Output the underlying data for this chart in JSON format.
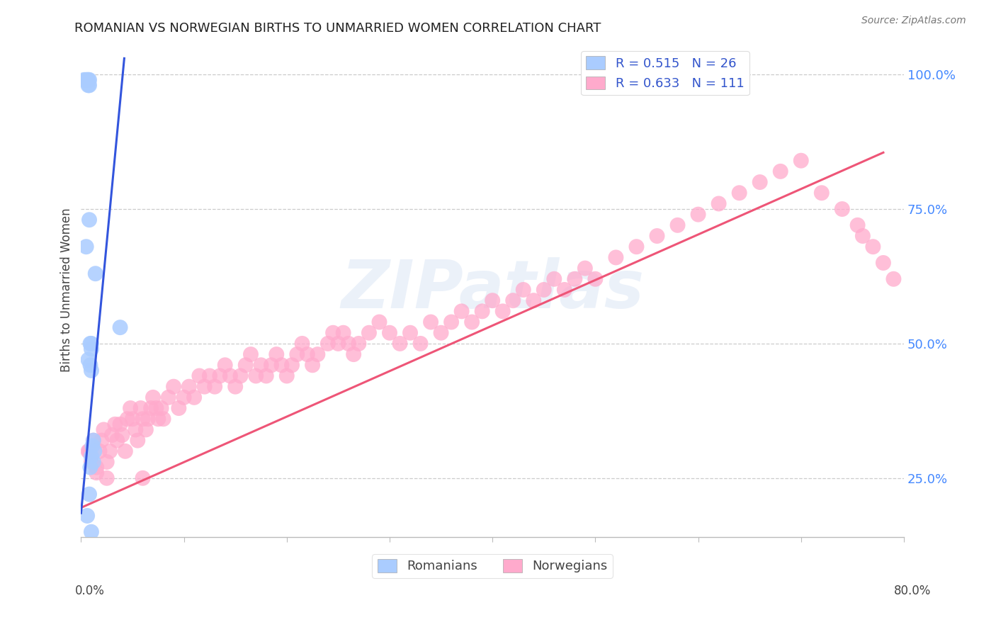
{
  "title": "ROMANIAN VS NORWEGIAN BIRTHS TO UNMARRIED WOMEN CORRELATION CHART",
  "source": "Source: ZipAtlas.com",
  "ylabel": "Births to Unmarried Women",
  "yticks": [
    0.25,
    0.5,
    0.75,
    1.0
  ],
  "ytick_labels": [
    "25.0%",
    "50.0%",
    "75.0%",
    "100.0%"
  ],
  "xmin": 0.0,
  "xmax": 0.8,
  "ymin": 0.14,
  "ymax": 1.06,
  "romanian_color": "#aaccff",
  "norwegian_color": "#ffaacc",
  "trend_romanian_color": "#3355dd",
  "trend_norwegian_color": "#ee5577",
  "legend_r_romanian": "R = 0.515",
  "legend_n_romanian": "N = 26",
  "legend_r_norwegian": "R = 0.633",
  "legend_n_norwegian": "N = 111",
  "watermark": "ZIPatlas",
  "rom_x": [
    0.003,
    0.005,
    0.006,
    0.007,
    0.007,
    0.008,
    0.008,
    0.008,
    0.009,
    0.009,
    0.01,
    0.01,
    0.01,
    0.011,
    0.012,
    0.012,
    0.013,
    0.014,
    0.005,
    0.007,
    0.009,
    0.01,
    0.008,
    0.006,
    0.038,
    0.01
  ],
  "rom_y": [
    0.99,
    0.99,
    0.99,
    0.99,
    0.98,
    0.99,
    0.98,
    0.73,
    0.46,
    0.5,
    0.45,
    0.49,
    0.29,
    0.31,
    0.32,
    0.28,
    0.3,
    0.63,
    0.68,
    0.47,
    0.27,
    0.5,
    0.22,
    0.18,
    0.53,
    0.15
  ],
  "nor_x": [
    0.008,
    0.01,
    0.012,
    0.015,
    0.018,
    0.02,
    0.022,
    0.025,
    0.028,
    0.03,
    0.033,
    0.035,
    0.038,
    0.04,
    0.043,
    0.045,
    0.048,
    0.05,
    0.053,
    0.055,
    0.058,
    0.06,
    0.063,
    0.065,
    0.068,
    0.07,
    0.073,
    0.075,
    0.078,
    0.08,
    0.085,
    0.09,
    0.095,
    0.1,
    0.105,
    0.11,
    0.115,
    0.12,
    0.125,
    0.13,
    0.135,
    0.14,
    0.145,
    0.15,
    0.155,
    0.16,
    0.165,
    0.17,
    0.175,
    0.18,
    0.185,
    0.19,
    0.195,
    0.2,
    0.205,
    0.21,
    0.215,
    0.22,
    0.225,
    0.23,
    0.24,
    0.245,
    0.25,
    0.255,
    0.26,
    0.265,
    0.27,
    0.28,
    0.29,
    0.3,
    0.31,
    0.32,
    0.33,
    0.34,
    0.35,
    0.36,
    0.37,
    0.38,
    0.39,
    0.4,
    0.41,
    0.42,
    0.43,
    0.44,
    0.45,
    0.46,
    0.47,
    0.48,
    0.49,
    0.5,
    0.52,
    0.54,
    0.56,
    0.58,
    0.6,
    0.62,
    0.64,
    0.66,
    0.68,
    0.7,
    0.72,
    0.74,
    0.755,
    0.76,
    0.77,
    0.78,
    0.79,
    0.007,
    0.015,
    0.025,
    0.06
  ],
  "nor_y": [
    0.3,
    0.28,
    0.32,
    0.27,
    0.3,
    0.32,
    0.34,
    0.28,
    0.3,
    0.33,
    0.35,
    0.32,
    0.35,
    0.33,
    0.3,
    0.36,
    0.38,
    0.36,
    0.34,
    0.32,
    0.38,
    0.36,
    0.34,
    0.36,
    0.38,
    0.4,
    0.38,
    0.36,
    0.38,
    0.36,
    0.4,
    0.42,
    0.38,
    0.4,
    0.42,
    0.4,
    0.44,
    0.42,
    0.44,
    0.42,
    0.44,
    0.46,
    0.44,
    0.42,
    0.44,
    0.46,
    0.48,
    0.44,
    0.46,
    0.44,
    0.46,
    0.48,
    0.46,
    0.44,
    0.46,
    0.48,
    0.5,
    0.48,
    0.46,
    0.48,
    0.5,
    0.52,
    0.5,
    0.52,
    0.5,
    0.48,
    0.5,
    0.52,
    0.54,
    0.52,
    0.5,
    0.52,
    0.5,
    0.54,
    0.52,
    0.54,
    0.56,
    0.54,
    0.56,
    0.58,
    0.56,
    0.58,
    0.6,
    0.58,
    0.6,
    0.62,
    0.6,
    0.62,
    0.64,
    0.62,
    0.66,
    0.68,
    0.7,
    0.72,
    0.74,
    0.76,
    0.78,
    0.8,
    0.82,
    0.84,
    0.78,
    0.75,
    0.72,
    0.7,
    0.68,
    0.65,
    0.62,
    0.3,
    0.26,
    0.25,
    0.25
  ]
}
